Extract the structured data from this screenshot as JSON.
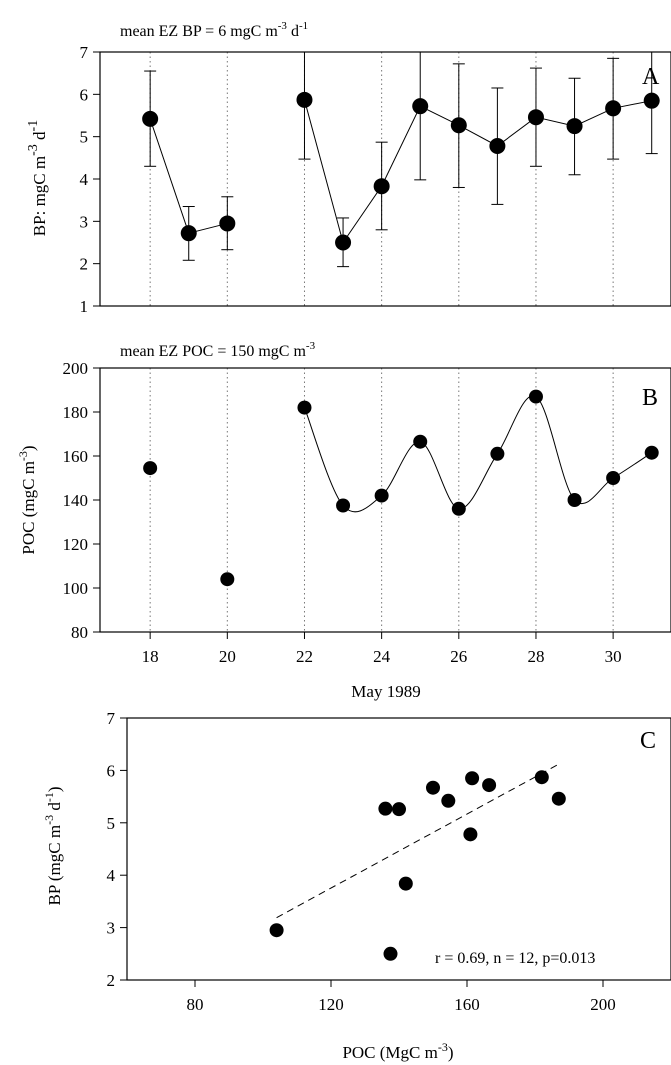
{
  "chart_data": [
    {
      "panel": "A",
      "type": "line",
      "annotation": "mean EZ BP = 6 mgC m",
      "annotation_sup1": "-3",
      "annotation_mid": " d",
      "annotation_sup2": "-1",
      "ylabel": "BP: mgC m",
      "ylabel_sup1": "-3",
      "ylabel_mid": " d",
      "ylabel_sup2": "-1",
      "xlim": [
        16.7,
        31.5
      ],
      "ylim": [
        1,
        7
      ],
      "yticks": [
        1,
        2,
        3,
        4,
        5,
        6,
        7
      ],
      "gridlines_x": [
        18,
        20,
        22,
        24,
        26,
        28,
        30
      ],
      "legend": "none",
      "series": [
        {
          "points": [
            {
              "x": 18,
              "y": 5.42,
              "err_low": 4.3,
              "err_high": 6.55
            },
            {
              "x": 19,
              "y": 2.72,
              "err_low": 2.08,
              "err_high": 3.35
            },
            {
              "x": 20,
              "y": 2.95,
              "err_low": 2.33,
              "err_high": 3.58
            },
            {
              "x": 22,
              "y": 5.87,
              "err_low": 4.47,
              "err_high": 7.0
            },
            {
              "x": 23,
              "y": 2.5,
              "err_low": 1.93,
              "err_high": 3.08
            },
            {
              "x": 24,
              "y": 3.83,
              "err_low": 2.8,
              "err_high": 4.87
            },
            {
              "x": 25,
              "y": 5.72,
              "err_low": 3.98,
              "err_high": 7.0
            },
            {
              "x": 26,
              "y": 5.27,
              "err_low": 3.8,
              "err_high": 6.72
            },
            {
              "x": 27,
              "y": 4.78,
              "err_low": 3.4,
              "err_high": 6.15
            },
            {
              "x": 28,
              "y": 5.46,
              "err_low": 4.3,
              "err_high": 6.62
            },
            {
              "x": 29,
              "y": 5.25,
              "err_low": 4.1,
              "err_high": 6.38
            },
            {
              "x": 30,
              "y": 5.67,
              "err_low": 4.47,
              "err_high": 6.85
            },
            {
              "x": 31,
              "y": 5.85,
              "err_low": 4.6,
              "err_high": 7.0
            }
          ],
          "line_segments": [
            [
              18,
              19,
              20
            ],
            [
              22,
              23,
              24,
              25,
              26,
              27,
              28,
              29,
              30,
              31
            ]
          ]
        }
      ]
    },
    {
      "panel": "B",
      "type": "scatter",
      "annotation": "mean EZ POC = 150 mgC m",
      "annotation_sup1": "-3",
      "ylabel": "POC (mgC m",
      "ylabel_sup1": "-3",
      "ylabel_end": ")",
      "xlabel": "May 1989",
      "xlim": [
        16.7,
        31.5
      ],
      "ylim": [
        80,
        200
      ],
      "xticks": [
        18,
        20,
        22,
        24,
        26,
        28,
        30
      ],
      "yticks": [
        80,
        100,
        120,
        140,
        160,
        180,
        200
      ],
      "gridlines_x": [
        18,
        20,
        22,
        24,
        26,
        28,
        30
      ],
      "legend": "none",
      "points": [
        {
          "x": 18,
          "y": 154.5
        },
        {
          "x": 20,
          "y": 104
        },
        {
          "x": 22,
          "y": 182
        },
        {
          "x": 23,
          "y": 137.5
        },
        {
          "x": 24,
          "y": 142
        },
        {
          "x": 25,
          "y": 166.5
        },
        {
          "x": 26,
          "y": 136
        },
        {
          "x": 27,
          "y": 161
        },
        {
          "x": 28,
          "y": 187
        },
        {
          "x": 29,
          "y": 140
        },
        {
          "x": 30,
          "y": 150
        },
        {
          "x": 31,
          "y": 161.5
        }
      ],
      "smooth_curve_from": 22
    },
    {
      "panel": "C",
      "type": "scatter",
      "xlabel": "POC (MgC m",
      "xlabel_sup1": "-3",
      "xlabel_end": ")",
      "ylabel": "BP (mgC m",
      "ylabel_sup1": "-3",
      "ylabel_mid": " d",
      "ylabel_sup2": "-1",
      "ylabel_end": ")",
      "stats": "r = 0.69, n = 12, p=0.013",
      "xlim": [
        60,
        220
      ],
      "ylim": [
        2,
        7
      ],
      "xticks": [
        80,
        120,
        160,
        200
      ],
      "yticks": [
        2,
        3,
        4,
        5,
        6,
        7
      ],
      "legend": "none",
      "points": [
        {
          "x": 104,
          "y": 2.95
        },
        {
          "x": 136,
          "y": 5.27
        },
        {
          "x": 137.5,
          "y": 2.5
        },
        {
          "x": 140,
          "y": 5.26
        },
        {
          "x": 142,
          "y": 3.84
        },
        {
          "x": 150,
          "y": 5.67
        },
        {
          "x": 154.5,
          "y": 5.42
        },
        {
          "x": 161,
          "y": 4.78
        },
        {
          "x": 161.5,
          "y": 5.85
        },
        {
          "x": 166.5,
          "y": 5.72
        },
        {
          "x": 182,
          "y": 5.87
        },
        {
          "x": 187,
          "y": 5.46
        }
      ],
      "regression": {
        "x": [
          104,
          187
        ],
        "y": [
          3.19,
          6.12
        ]
      }
    }
  ]
}
